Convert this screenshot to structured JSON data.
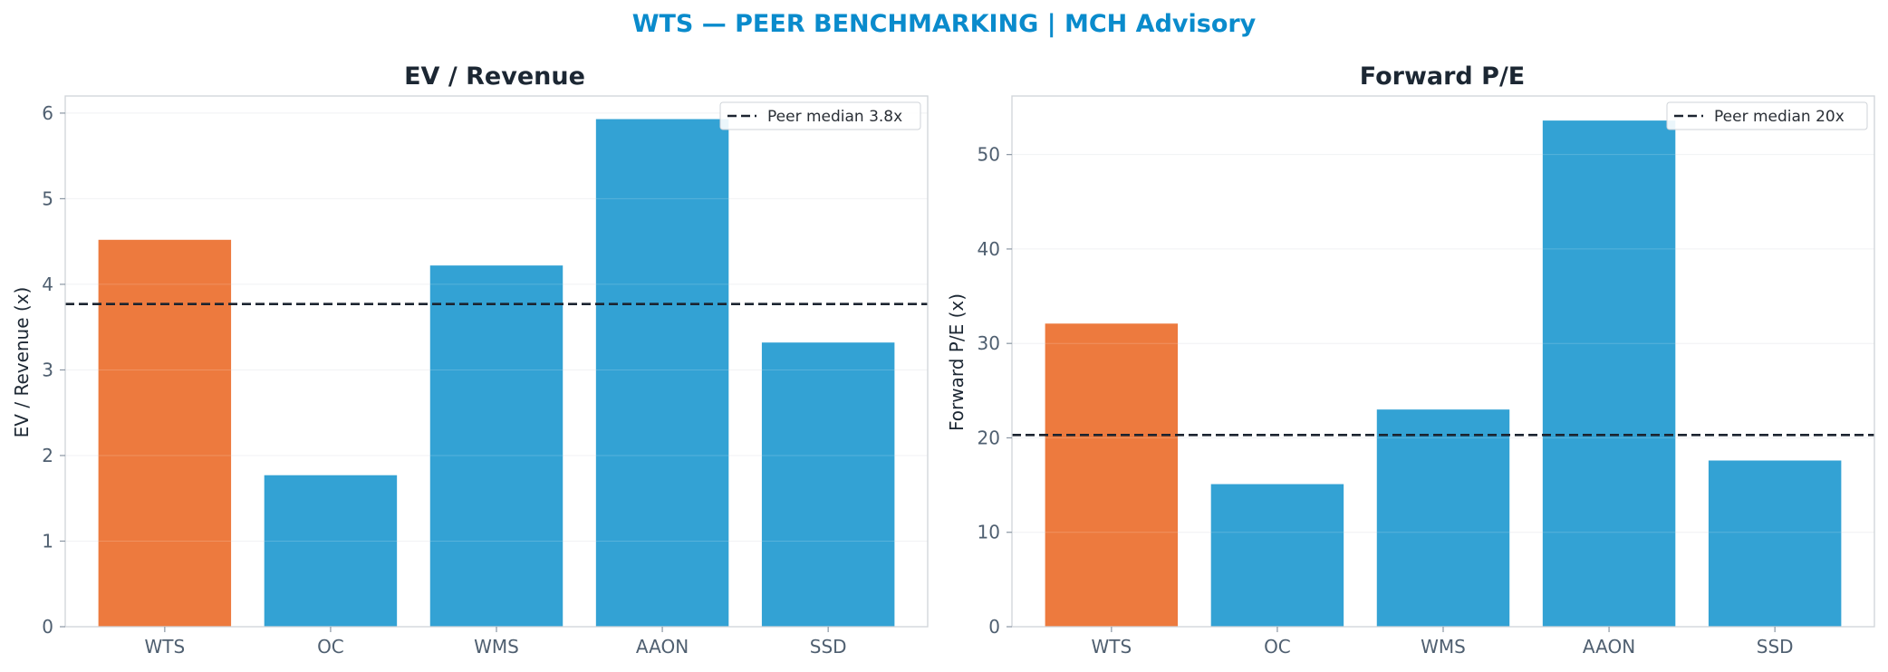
{
  "figure": {
    "suptitle": "WTS — PEER BENCHMARKING | MCH Advisory"
  },
  "colors": {
    "highlight": "#ed7a3e",
    "peer": "#33a2d4",
    "median_line": "#1c2430",
    "title": "#0a8bcc",
    "axes_edge": "#d0d4d8",
    "grid": "#eef0f2"
  },
  "chart_data": [
    {
      "type": "bar",
      "title": "EV / Revenue",
      "xlabel": "",
      "ylabel": "EV / Revenue (x)",
      "categories": [
        "WTS",
        "OC",
        "WMS",
        "AAON",
        "SSD"
      ],
      "values": [
        4.52,
        1.77,
        4.22,
        5.93,
        3.32
      ],
      "highlight_category": "WTS",
      "ylim": [
        0,
        6.2
      ],
      "yticks": [
        0,
        1,
        2,
        3,
        4,
        5,
        6
      ],
      "reference_line": {
        "value": 3.77,
        "label": "Peer median 3.8x",
        "style": "dashed"
      },
      "grid": true,
      "legend": "upper right"
    },
    {
      "type": "bar",
      "title": "Forward P/E",
      "xlabel": "",
      "ylabel": "Forward P/E (x)",
      "categories": [
        "WTS",
        "OC",
        "WMS",
        "AAON",
        "SSD"
      ],
      "values": [
        32.1,
        15.1,
        23.0,
        53.6,
        17.6
      ],
      "highlight_category": "WTS",
      "ylim": [
        0,
        56.2
      ],
      "yticks": [
        0,
        10,
        20,
        30,
        40,
        50
      ],
      "reference_line": {
        "value": 20.3,
        "label": "Peer median 20x",
        "style": "dashed"
      },
      "grid": true,
      "legend": "upper right"
    }
  ]
}
